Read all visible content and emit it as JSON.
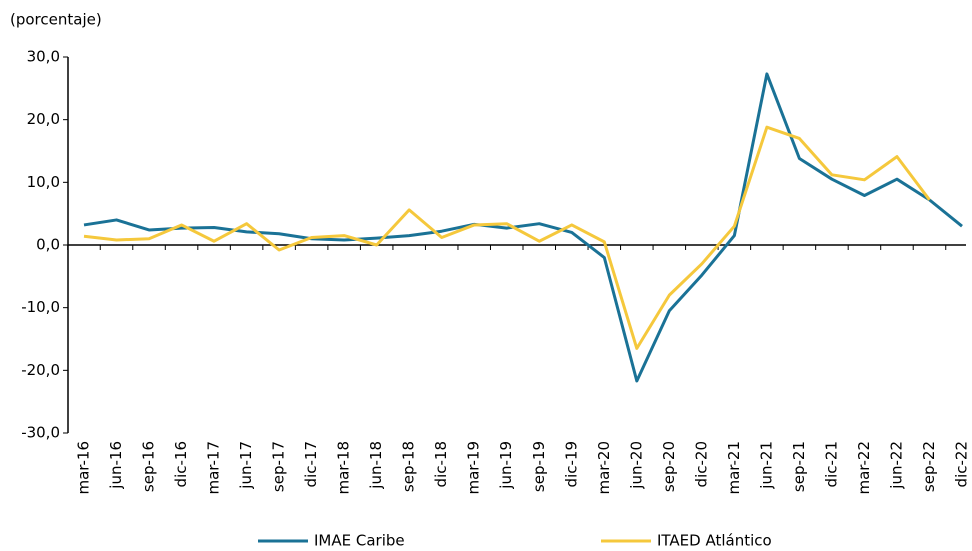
{
  "chart_data": {
    "type": "line",
    "y_unit": "(porcentaje)",
    "categories": [
      "mar-16",
      "jun-16",
      "sep-16",
      "dic-16",
      "mar-17",
      "jun-17",
      "sep-17",
      "dic-17",
      "mar-18",
      "jun-18",
      "sep-18",
      "dic-18",
      "mar-19",
      "jun-19",
      "sep-19",
      "dic-19",
      "mar-20",
      "jun-20",
      "sep-20",
      "dic-20",
      "mar-21",
      "jun-21",
      "sep-21",
      "dic-21",
      "mar-22",
      "jun-22",
      "sep-22",
      "dic-22"
    ],
    "series": [
      {
        "name": "IMAE Caribe",
        "color": "#1a7296",
        "values": [
          3.2,
          4.0,
          2.4,
          2.7,
          2.8,
          2.1,
          1.8,
          1.0,
          0.8,
          1.1,
          1.5,
          2.2,
          3.3,
          2.7,
          3.4,
          2.0,
          -2.0,
          -21.7,
          -10.5,
          -4.8,
          1.5,
          27.3,
          13.8,
          10.5,
          7.9,
          10.5,
          7.2,
          3.0
        ]
      },
      {
        "name": "ITAED Atlántico",
        "color": "#f5c83c",
        "values": [
          1.4,
          0.8,
          1.0,
          3.2,
          0.6,
          3.4,
          -0.8,
          1.2,
          1.5,
          0.0,
          5.6,
          1.2,
          3.2,
          3.4,
          0.6,
          3.2,
          0.5,
          -16.5,
          -8.0,
          -3.0,
          3.0,
          18.8,
          17.0,
          11.2,
          10.4,
          14.1,
          7.2,
          null
        ]
      }
    ],
    "ylim": [
      -30,
      30
    ],
    "yticks": [
      {
        "value": -30,
        "label": "-30,0"
      },
      {
        "value": -20,
        "label": "-20,0"
      },
      {
        "value": -10,
        "label": "-10,0"
      },
      {
        "value": 0,
        "label": "0,0"
      },
      {
        "value": 10,
        "label": "10,0"
      },
      {
        "value": 20,
        "label": "20,0"
      },
      {
        "value": 30,
        "label": "30,0"
      }
    ]
  }
}
